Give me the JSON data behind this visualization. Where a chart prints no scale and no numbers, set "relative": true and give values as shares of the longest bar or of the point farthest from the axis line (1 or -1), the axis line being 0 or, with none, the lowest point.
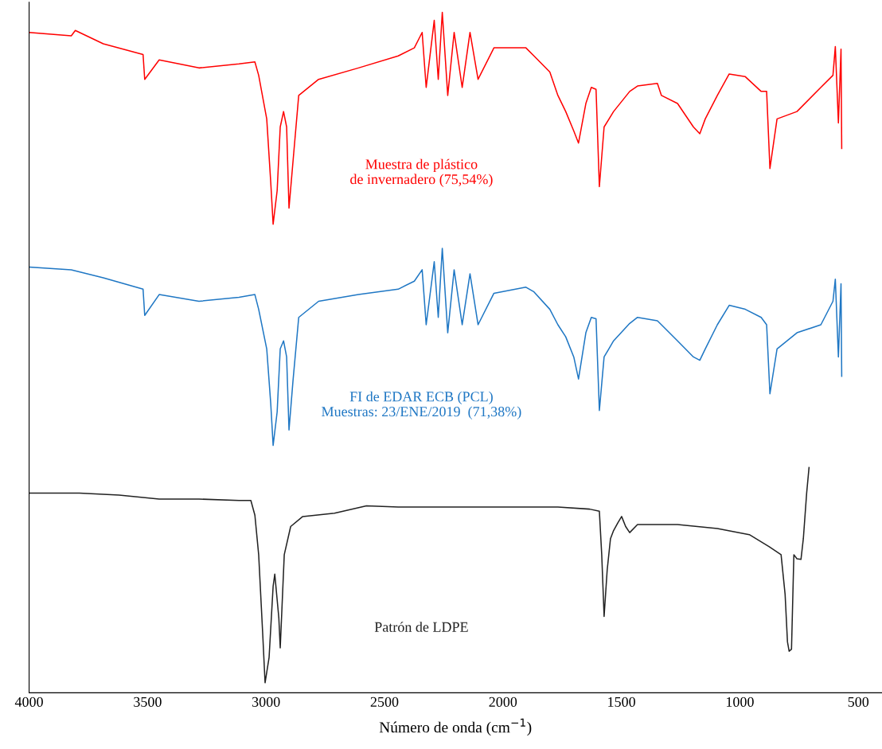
{
  "chart_data": {
    "type": "line",
    "relative": true,
    "xlabel": "Número de onda (cm$^{−1}$)",
    "xlim": [
      4000,
      400
    ],
    "xticks": [
      4000,
      3500,
      3000,
      2500,
      2000,
      1500,
      1000,
      500
    ],
    "tick_labels": "x",
    "grid": false,
    "legend": false,
    "series": [
      {
        "name": "Muestra de plástico\nde invernadero (75,54%)",
        "color": "#ff0000",
        "x": [
          4000,
          3822,
          3805,
          3687,
          3519,
          3512,
          3451,
          3283,
          3114,
          3047,
          3031,
          2997,
          2980,
          2970,
          2953,
          2940,
          2926,
          2913,
          2903,
          2886,
          2862,
          2778,
          2610,
          2442,
          2374,
          2341,
          2324,
          2290,
          2273,
          2256,
          2233,
          2206,
          2172,
          2139,
          2105,
          2038,
          1903,
          1869,
          1802,
          1768,
          1735,
          1701,
          1681,
          1650,
          1627,
          1607,
          1593,
          1573,
          1533,
          1465,
          1432,
          1348,
          1331,
          1263,
          1196,
          1169,
          1146,
          1095,
          1045,
          977,
          910,
          887,
          873,
          843,
          759,
          658,
          607,
          597,
          584,
          573,
          570
        ],
        "values": [
          0.97,
          0.965,
          0.973,
          0.953,
          0.937,
          0.9,
          0.929,
          0.917,
          0.923,
          0.926,
          0.906,
          0.841,
          0.746,
          0.684,
          0.734,
          0.829,
          0.852,
          0.829,
          0.708,
          0.778,
          0.876,
          0.9,
          0.917,
          0.935,
          0.947,
          0.97,
          0.888,
          0.988,
          0.9,
          1.0,
          0.876,
          0.97,
          0.888,
          0.97,
          0.9,
          0.947,
          0.947,
          0.935,
          0.911,
          0.876,
          0.852,
          0.823,
          0.805,
          0.864,
          0.888,
          0.885,
          0.74,
          0.829,
          0.852,
          0.882,
          0.89,
          0.894,
          0.876,
          0.864,
          0.829,
          0.819,
          0.841,
          0.876,
          0.908,
          0.904,
          0.882,
          0.882,
          0.767,
          0.841,
          0.852,
          0.888,
          0.906,
          0.949,
          0.835,
          0.945,
          0.797
        ]
      },
      {
        "name": "FI de EDAR ECB (PCL)\nMuestras: 23/ENE/2019  (71,38%)",
        "color": "#1f77c4",
        "x": [
          4000,
          3822,
          3687,
          3519,
          3512,
          3451,
          3283,
          3114,
          3047,
          3031,
          2997,
          2980,
          2970,
          2953,
          2940,
          2926,
          2913,
          2903,
          2886,
          2862,
          2778,
          2610,
          2442,
          2374,
          2341,
          2324,
          2290,
          2273,
          2256,
          2233,
          2206,
          2172,
          2139,
          2105,
          2038,
          1903,
          1869,
          1802,
          1768,
          1735,
          1701,
          1681,
          1650,
          1627,
          1607,
          1593,
          1573,
          1533,
          1465,
          1432,
          1348,
          1331,
          1263,
          1196,
          1169,
          1146,
          1095,
          1045,
          977,
          910,
          887,
          873,
          843,
          759,
          658,
          607,
          597,
          584,
          573,
          570
        ],
        "values": [
          0.62,
          0.616,
          0.604,
          0.587,
          0.548,
          0.579,
          0.569,
          0.575,
          0.579,
          0.557,
          0.498,
          0.416,
          0.354,
          0.404,
          0.498,
          0.51,
          0.486,
          0.377,
          0.451,
          0.545,
          0.569,
          0.579,
          0.587,
          0.599,
          0.616,
          0.534,
          0.628,
          0.545,
          0.648,
          0.522,
          0.616,
          0.534,
          0.61,
          0.534,
          0.581,
          0.59,
          0.583,
          0.557,
          0.534,
          0.516,
          0.486,
          0.453,
          0.522,
          0.545,
          0.543,
          0.406,
          0.486,
          0.51,
          0.536,
          0.545,
          0.54,
          0.534,
          0.51,
          0.486,
          0.481,
          0.498,
          0.534,
          0.563,
          0.557,
          0.545,
          0.534,
          0.431,
          0.498,
          0.522,
          0.534,
          0.569,
          0.602,
          0.486,
          0.595,
          0.457
        ]
      },
      {
        "name": "Patrón de LDPE",
        "color": "#222222",
        "x": [
          4000,
          3788,
          3620,
          3451,
          3283,
          3114,
          3064,
          3047,
          3031,
          3014,
          3004,
          2987,
          2970,
          2963,
          2946,
          2940,
          2923,
          2896,
          2845,
          2711,
          2576,
          2442,
          2105,
          1768,
          1634,
          1593,
          1583,
          1573,
          1560,
          1546,
          1533,
          1516,
          1499,
          1482,
          1465,
          1432,
          1263,
          1095,
          960,
          876,
          826,
          809,
          799,
          792,
          782,
          772,
          759,
          742,
          732,
          718,
          708
        ],
        "values": [
          0.283,
          0.283,
          0.28,
          0.274,
          0.274,
          0.272,
          0.272,
          0.25,
          0.191,
          0.073,
          0.0,
          0.038,
          0.144,
          0.162,
          0.097,
          0.052,
          0.191,
          0.233,
          0.248,
          0.253,
          0.264,
          0.262,
          0.262,
          0.262,
          0.259,
          0.256,
          0.191,
          0.099,
          0.168,
          0.215,
          0.227,
          0.238,
          0.248,
          0.233,
          0.224,
          0.236,
          0.236,
          0.23,
          0.221,
          0.203,
          0.191,
          0.132,
          0.061,
          0.047,
          0.05,
          0.191,
          0.185,
          0.184,
          0.215,
          0.283,
          0.321
        ]
      }
    ]
  }
}
